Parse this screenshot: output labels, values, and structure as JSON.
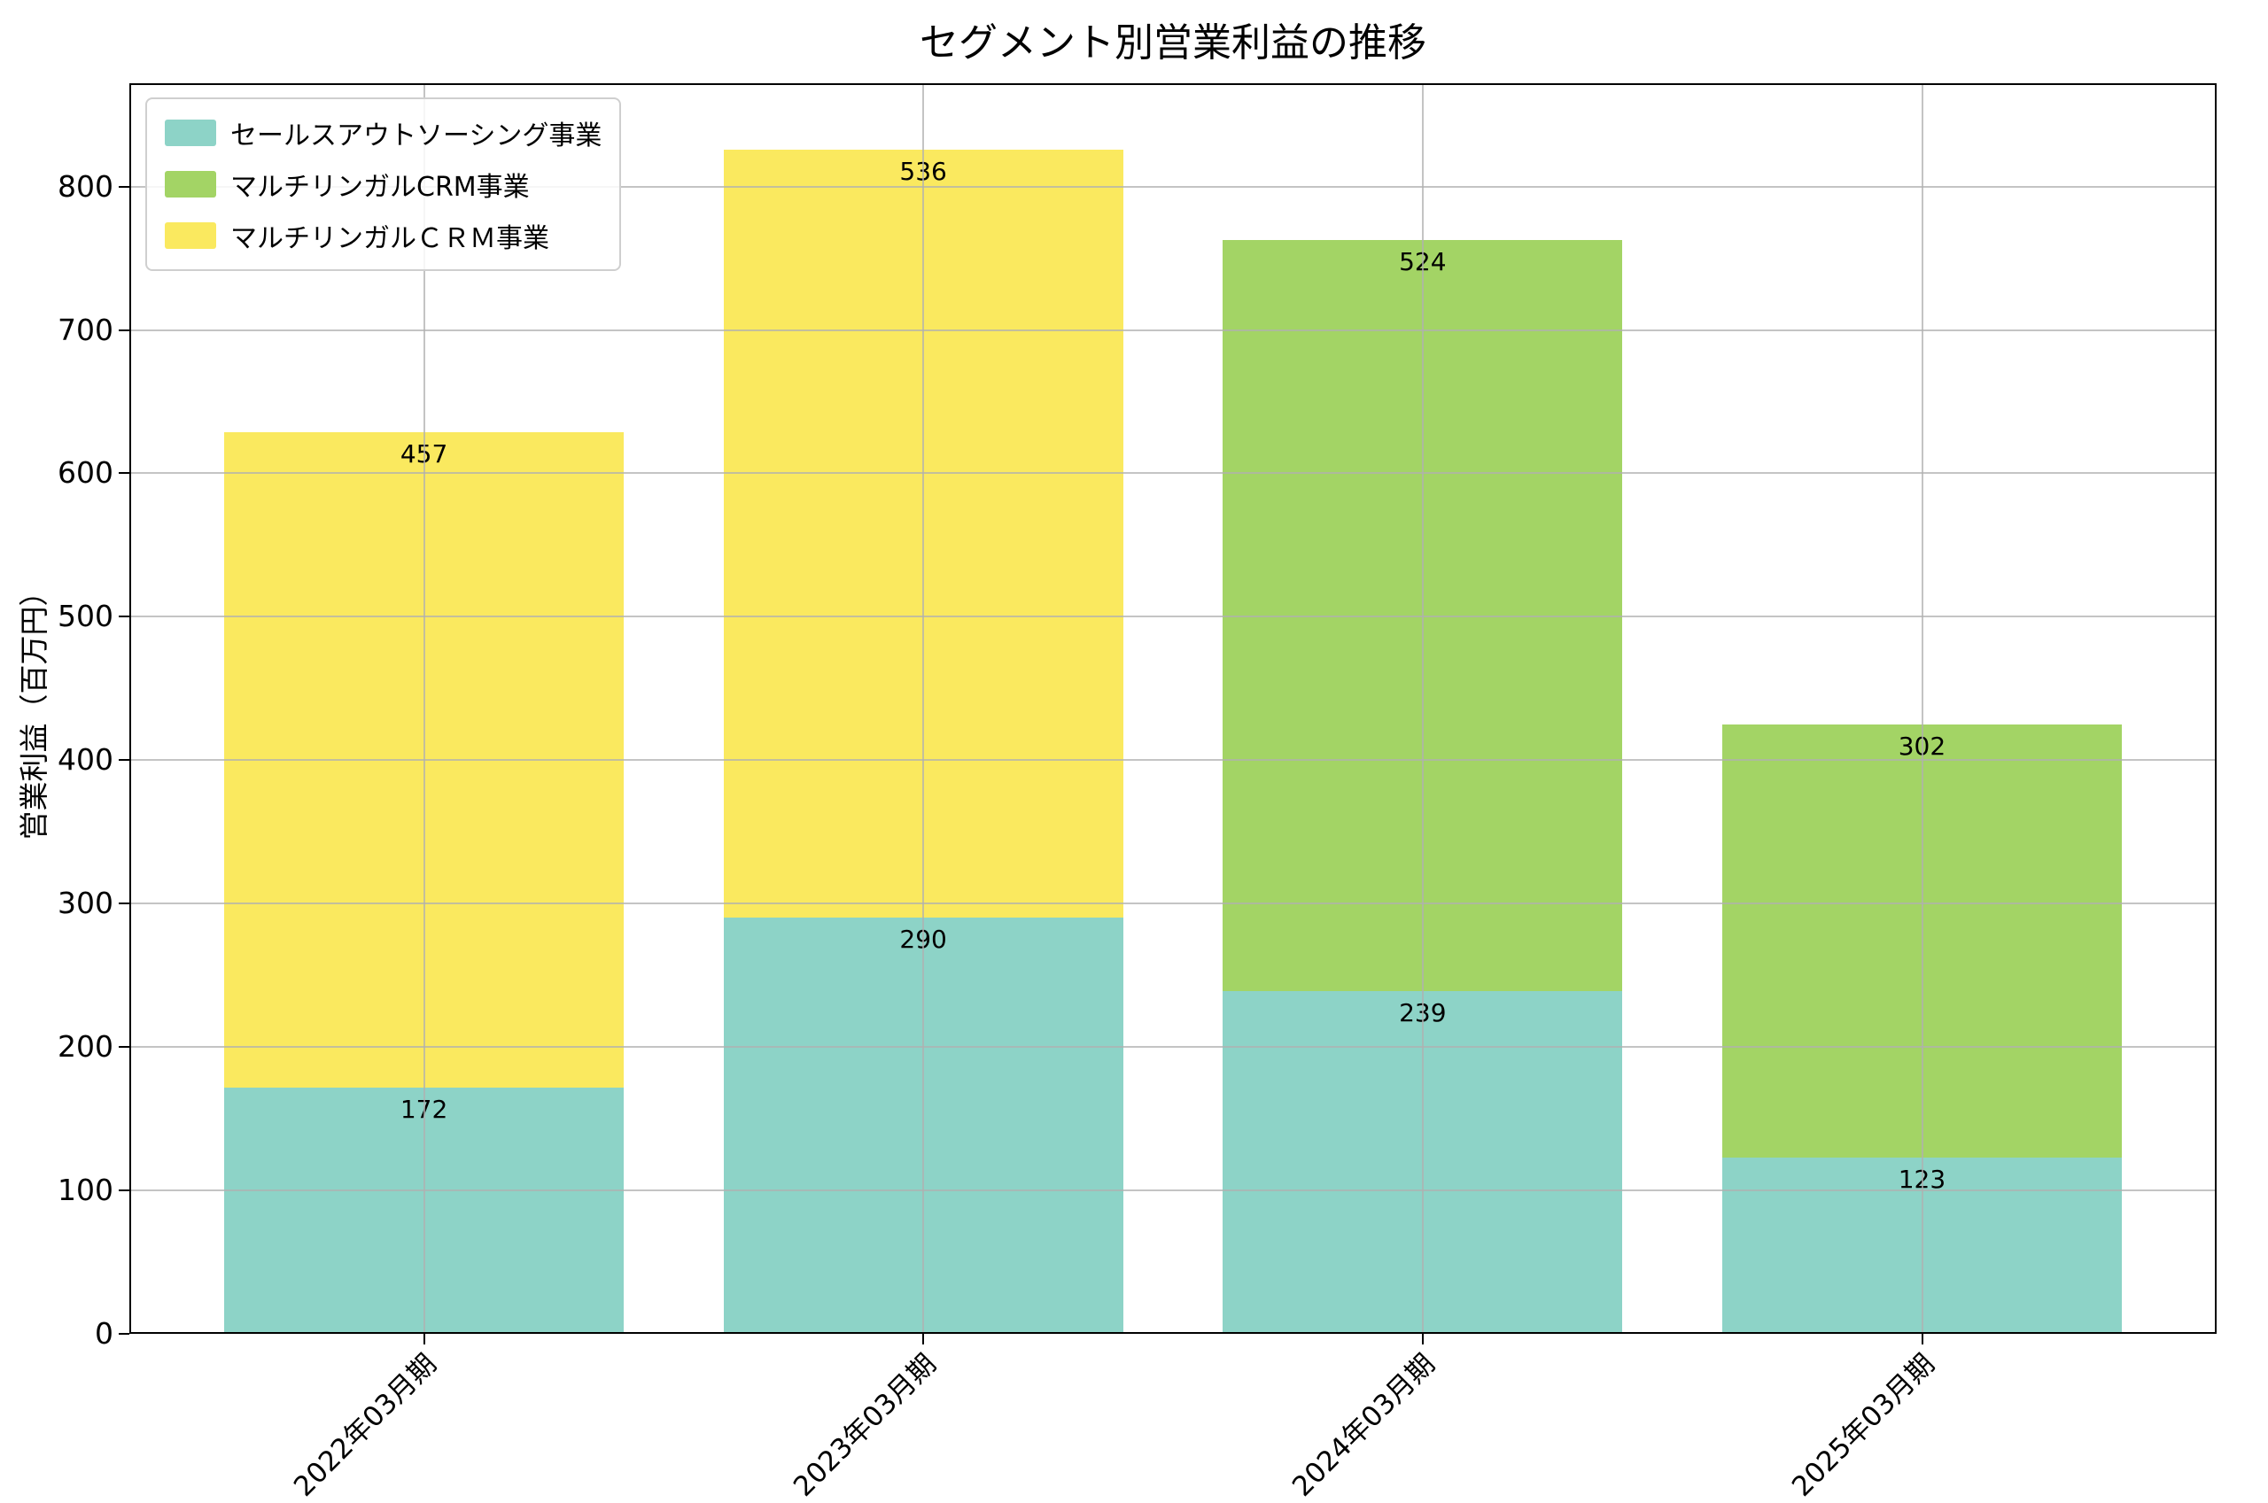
{
  "chart_data": {
    "type": "bar",
    "stacked": true,
    "title": "セグメント別営業利益の推移",
    "ylabel": "営業利益（百万円）",
    "xlabel": "",
    "categories": [
      "2022年03月期",
      "2023年03月期",
      "2024年03月期",
      "2025年03月期"
    ],
    "series": [
      {
        "name": "セールスアウトソーシング事業",
        "color": "#8DD3C7",
        "values": [
          172,
          290,
          239,
          123
        ]
      },
      {
        "name": "マルチリンガルCRM事業",
        "color": "#A3D465",
        "values": [
          0,
          0,
          524,
          302
        ]
      },
      {
        "name": "マルチリンガルＣＲＭ事業",
        "color": "#FAE95F",
        "values": [
          457,
          536,
          0,
          0
        ]
      }
    ],
    "yticks": [
      0,
      100,
      200,
      300,
      400,
      500,
      600,
      700,
      800
    ],
    "ylim": [
      0,
      872
    ],
    "grid": true,
    "grid_color": "#b0b0b0",
    "legend_position": "upper-left",
    "bar_value_labels": true
  }
}
